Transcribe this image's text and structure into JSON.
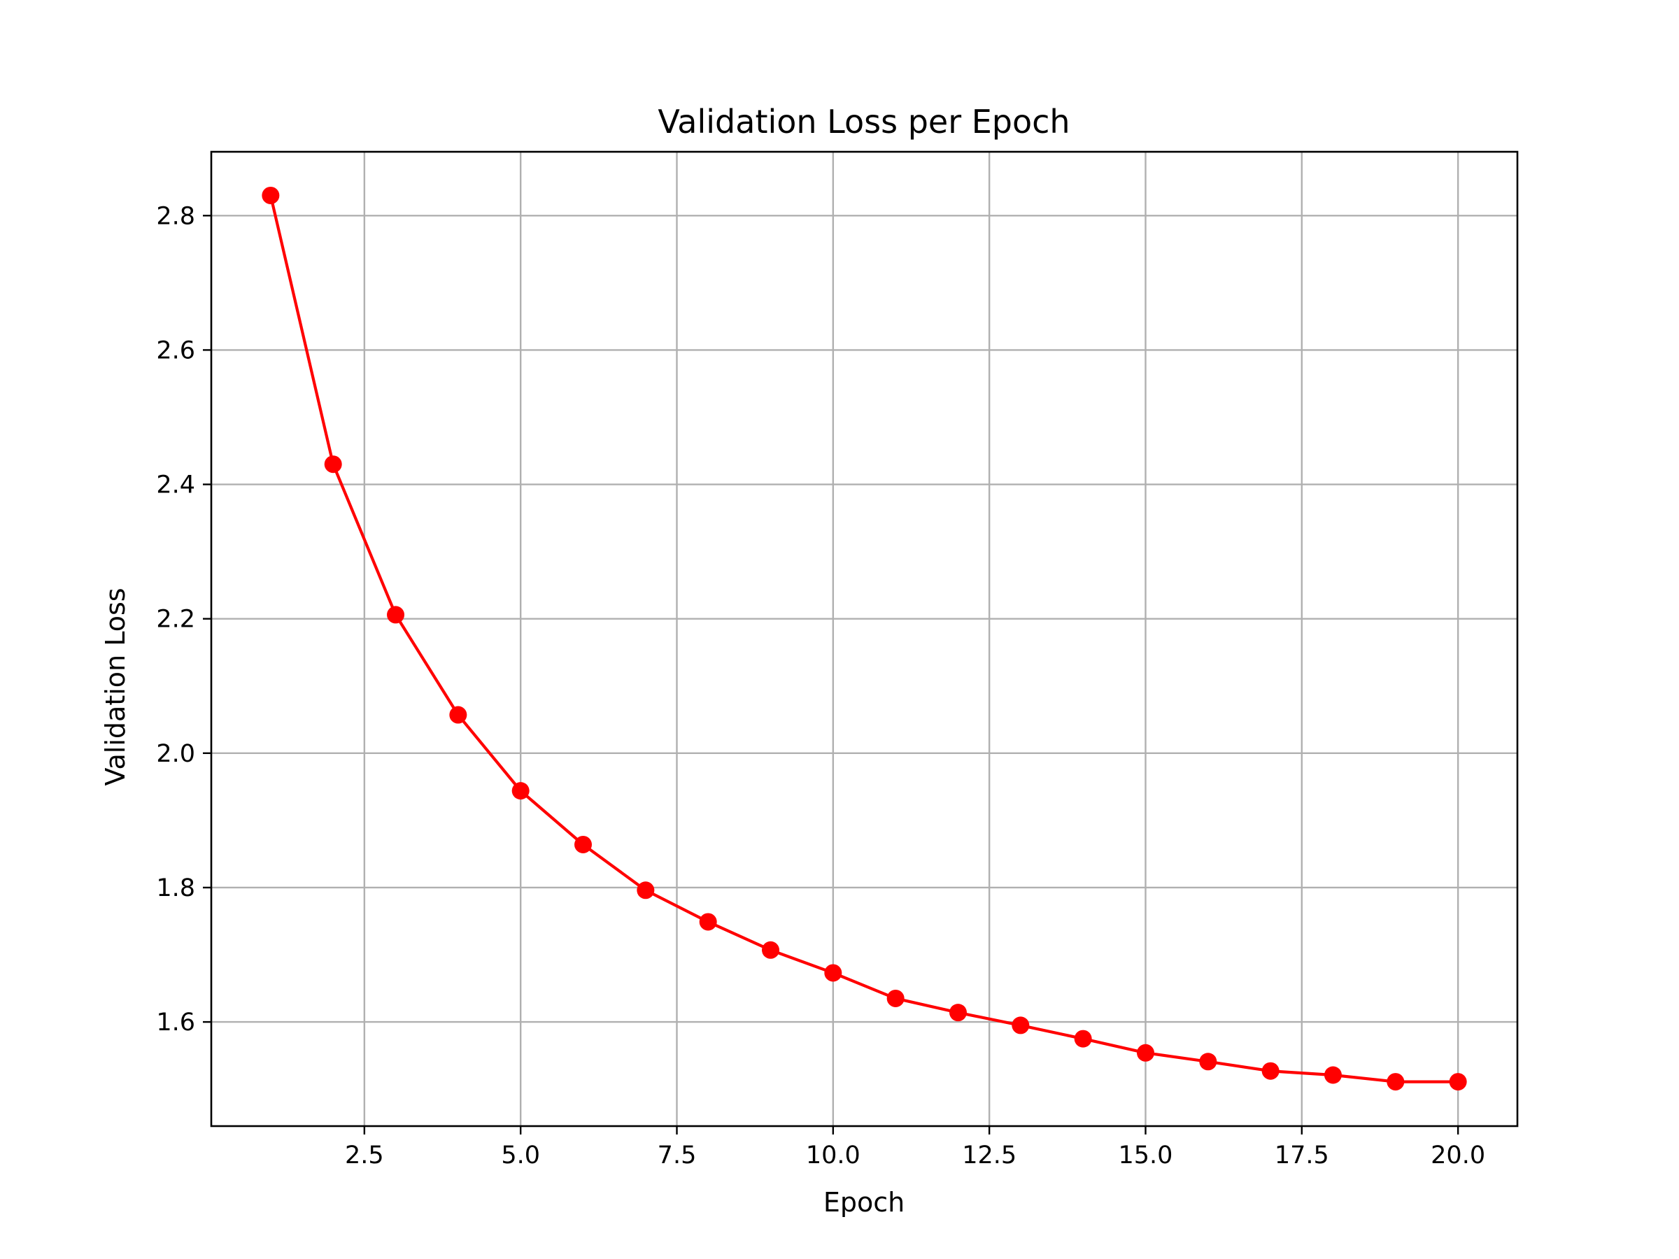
{
  "chart_data": {
    "type": "line",
    "title": "Validation Loss per Epoch",
    "xlabel": "Epoch",
    "ylabel": "Validation Loss",
    "xlim": [
      0.05,
      20.95
    ],
    "ylim": [
      1.445,
      2.895
    ],
    "xticks": [
      2.5,
      5.0,
      7.5,
      10.0,
      12.5,
      15.0,
      17.5,
      20.0
    ],
    "xtick_labels": [
      "2.5",
      "5.0",
      "7.5",
      "10.0",
      "12.5",
      "15.0",
      "17.5",
      "20.0"
    ],
    "yticks": [
      1.6,
      1.8,
      2.0,
      2.2,
      2.4,
      2.6,
      2.8
    ],
    "ytick_labels": [
      "1.6",
      "1.8",
      "2.0",
      "2.2",
      "2.4",
      "2.6",
      "2.8"
    ],
    "grid": true,
    "series": [
      {
        "color": "#ff0000",
        "marker": "circle",
        "x": [
          1,
          2,
          3,
          4,
          5,
          6,
          7,
          8,
          9,
          10,
          11,
          12,
          13,
          14,
          15,
          16,
          17,
          18,
          19,
          20
        ],
        "y": [
          2.83,
          2.43,
          2.206,
          2.057,
          1.944,
          1.864,
          1.796,
          1.749,
          1.707,
          1.673,
          1.635,
          1.614,
          1.595,
          1.575,
          1.554,
          1.541,
          1.527,
          1.521,
          1.511,
          1.511
        ]
      }
    ]
  }
}
